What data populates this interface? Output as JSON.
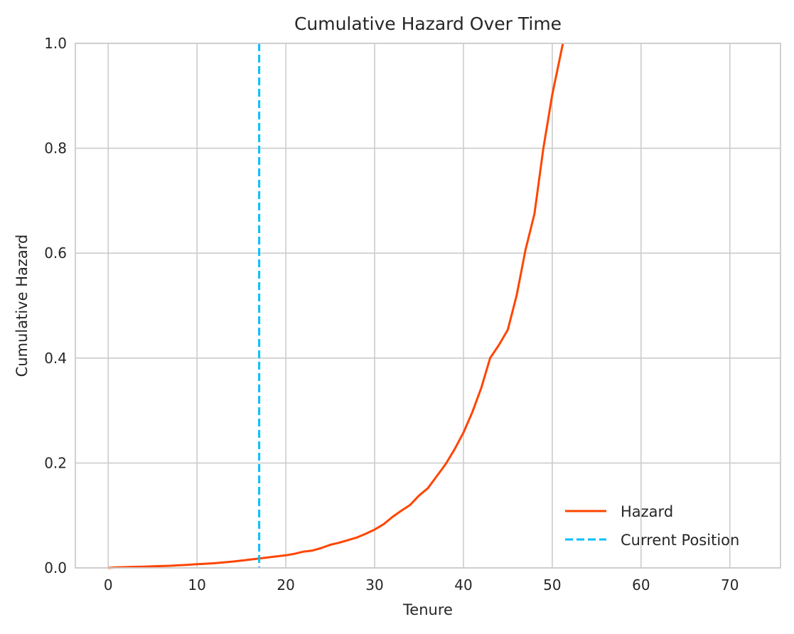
{
  "chart_data": {
    "type": "line",
    "title": "Cumulative Hazard Over Time",
    "xlabel": "Tenure",
    "ylabel": "Cumulative Hazard",
    "xlim": [
      -3.7,
      75.7
    ],
    "ylim": [
      0,
      1.0
    ],
    "xticks": [
      0,
      10,
      20,
      30,
      40,
      50,
      60,
      70
    ],
    "xtick_labels": [
      "0",
      "10",
      "20",
      "30",
      "40",
      "50",
      "60",
      "70"
    ],
    "yticks": [
      0.0,
      0.2,
      0.4,
      0.6,
      0.8,
      1.0
    ],
    "ytick_labels": [
      "0.0",
      "0.2",
      "0.4",
      "0.6",
      "0.8",
      "1.0"
    ],
    "grid": true,
    "legend_position": "lower-right",
    "series": [
      {
        "name": "Hazard",
        "color": "#ff4500",
        "style": "solid",
        "x": [
          0,
          1,
          2,
          3,
          4,
          5,
          6,
          7,
          8,
          9,
          10,
          11,
          12,
          13,
          14,
          15,
          16,
          17,
          18,
          19,
          20,
          21,
          22,
          23,
          24,
          25,
          26,
          27,
          28,
          29,
          30,
          31,
          32,
          33,
          34,
          35,
          36,
          37,
          38,
          39,
          40,
          41,
          42,
          43,
          44,
          45,
          46,
          47,
          48,
          49,
          50,
          51.2
        ],
        "y": [
          0,
          0.001,
          0.0015,
          0.002,
          0.0025,
          0.003,
          0.0035,
          0.004,
          0.005,
          0.006,
          0.007,
          0.008,
          0.009,
          0.0105,
          0.012,
          0.014,
          0.016,
          0.018,
          0.02,
          0.022,
          0.024,
          0.027,
          0.031,
          0.033,
          0.038,
          0.044,
          0.048,
          0.053,
          0.058,
          0.065,
          0.073,
          0.083,
          0.097,
          0.109,
          0.12,
          0.138,
          0.152,
          0.175,
          0.198,
          0.226,
          0.258,
          0.297,
          0.343,
          0.4,
          0.425,
          0.454,
          0.52,
          0.607,
          0.675,
          0.8,
          0.902,
          1.0
        ]
      },
      {
        "name": "Current Position",
        "color": "#00bfff",
        "style": "dashed",
        "vline_x": 17
      }
    ]
  }
}
